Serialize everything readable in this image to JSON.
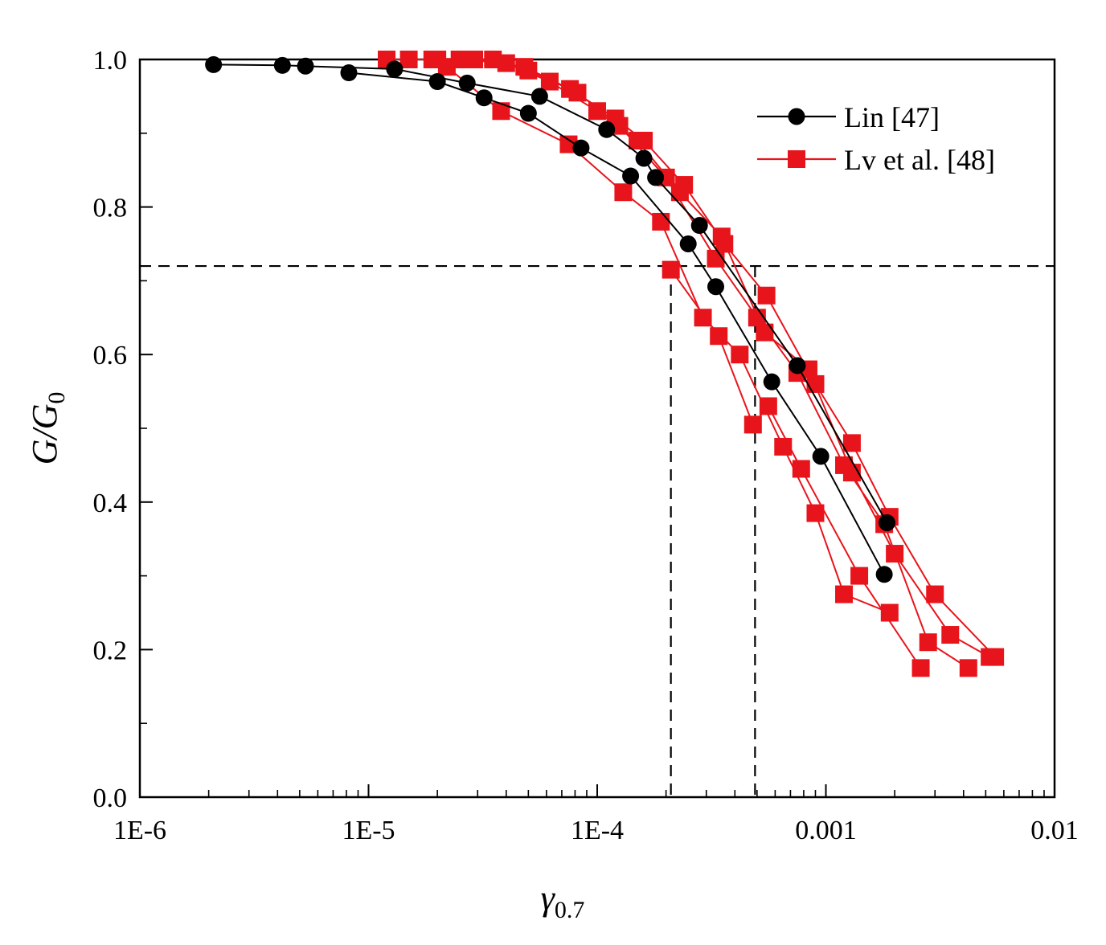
{
  "chart_data": {
    "type": "line",
    "title": "",
    "xlabel": "γ0.7",
    "xlabel_main": "γ",
    "xlabel_sub": "0.7",
    "ylabel": "G/G0",
    "ylabel_main": "G/G",
    "ylabel_sub": "0",
    "xscale": "log",
    "xlim": [
      1e-06,
      0.01
    ],
    "ylim": [
      0.0,
      1.0
    ],
    "xtick_labels": [
      "1E-6",
      "1E-5",
      "1E-4",
      "0.001",
      "0.01"
    ],
    "ytick_labels": [
      "0.0",
      "0.2",
      "0.4",
      "0.6",
      "0.8",
      "1.0"
    ],
    "grid": false,
    "legend_position": "top-right",
    "legend": [
      {
        "label": "Lin [47]",
        "color": "#000000",
        "marker": "circle"
      },
      {
        "label": "Lv et al. [48]",
        "color": "#e8141b",
        "marker": "square"
      }
    ],
    "reference_lines": {
      "y": 0.72,
      "x": [
        0.00021,
        0.00049
      ]
    },
    "series": [
      {
        "group": "Lin [47]",
        "color": "#000000",
        "marker": "circle",
        "x": [
          2.1e-06,
          4.2e-06,
          5.3e-06,
          1.3e-05,
          2.7e-05,
          5.6e-05,
          0.00011,
          0.00016,
          0.00018,
          0.00028,
          0.00075,
          0.00185
        ],
        "y": [
          0.993,
          0.992,
          0.991,
          0.987,
          0.968,
          0.95,
          0.905,
          0.866,
          0.84,
          0.775,
          0.585,
          0.372
        ]
      },
      {
        "group": "Lin [47]",
        "color": "#000000",
        "marker": "circle",
        "x": [
          8.2e-06,
          2e-05,
          3.2e-05,
          5e-05,
          8.5e-05,
          0.00014,
          0.00025,
          0.00033,
          0.00058,
          0.00095,
          0.0018
        ],
        "y": [
          0.982,
          0.97,
          0.948,
          0.927,
          0.88,
          0.842,
          0.75,
          0.692,
          0.563,
          0.462,
          0.302
        ]
      }
    ],
    "lv_series": [
      {
        "group": "Lv et al. [48]",
        "color": "#e8141b",
        "marker": "square",
        "x": [
          1.2e-05,
          1.9e-05,
          2.9e-05,
          4.8e-05,
          7.6e-05,
          0.00012,
          0.00016,
          0.00024,
          0.00036,
          0.00055,
          0.0009,
          0.0013,
          0.0019,
          0.003,
          0.0055
        ],
        "y": [
          1.0,
          1.0,
          1.0,
          0.99,
          0.96,
          0.92,
          0.89,
          0.83,
          0.75,
          0.68,
          0.56,
          0.48,
          0.38,
          0.275,
          0.19
        ]
      },
      {
        "group": "Lv et al. [48]",
        "color": "#e8141b",
        "marker": "square",
        "x": [
          1.5e-05,
          2.5e-05,
          4e-05,
          6.2e-05,
          0.0001,
          0.00015,
          0.00023,
          0.00035,
          0.00054,
          0.00084,
          0.0013,
          0.002,
          0.0035,
          0.0052
        ],
        "y": [
          1.0,
          1.0,
          0.995,
          0.97,
          0.93,
          0.89,
          0.82,
          0.76,
          0.63,
          0.58,
          0.44,
          0.33,
          0.22,
          0.19
        ]
      },
      {
        "group": "Lv et al. [48]",
        "color": "#e8141b",
        "marker": "square",
        "x": [
          2e-05,
          3.5e-05,
          5e-05,
          8.2e-05,
          0.000125,
          0.0002,
          0.00033,
          0.0005,
          0.00075,
          0.0012,
          0.0018,
          0.0028,
          0.0042
        ],
        "y": [
          1.0,
          1.0,
          0.985,
          0.955,
          0.91,
          0.84,
          0.73,
          0.65,
          0.575,
          0.45,
          0.37,
          0.21,
          0.175
        ]
      },
      {
        "group": "Lv et al. [48]",
        "color": "#e8141b",
        "marker": "square",
        "x": [
          2.2e-05,
          3.8e-05,
          7.5e-05,
          0.00013,
          0.00019,
          0.00029,
          0.00042,
          0.00065,
          0.0009,
          0.0012,
          0.0019
        ],
        "y": [
          0.99,
          0.93,
          0.885,
          0.82,
          0.78,
          0.65,
          0.6,
          0.475,
          0.385,
          0.275,
          0.25
        ]
      },
      {
        "group": "Lv et al. [48]",
        "color": "#e8141b",
        "marker": "square",
        "x": [
          0.00021,
          0.00034,
          0.00048,
          0.00056,
          0.00078,
          0.0014,
          0.0026
        ],
        "y": [
          0.715,
          0.625,
          0.505,
          0.53,
          0.445,
          0.3,
          0.175
        ]
      }
    ]
  }
}
